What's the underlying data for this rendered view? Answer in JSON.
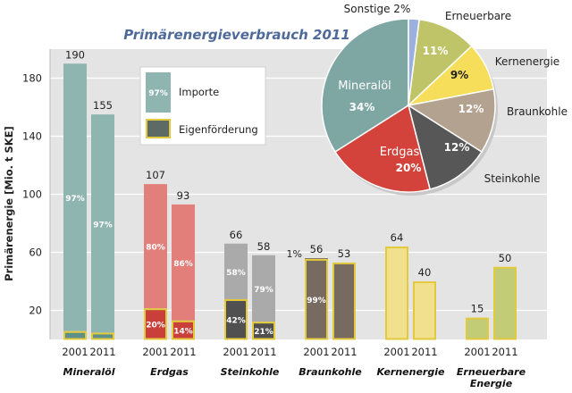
{
  "chart_data": [
    {
      "type": "bar",
      "title": "Primärenergieverbrauch 2011",
      "ylabel": "Primärenergie [Mio. t SKE]",
      "xlabel": "",
      "ylim": [
        0,
        200
      ],
      "yticks": [
        "20",
        "60",
        "100",
        "140",
        "180"
      ],
      "legend": {
        "placement": "top-left",
        "items": [
          {
            "label": "Importe",
            "swatch_pct": "97%"
          },
          {
            "label": "Eigenförderung",
            "swatch_pct": ""
          }
        ]
      },
      "groups": [
        {
          "name": "Mineralöl",
          "color": "#8fb5b1",
          "dark": "#5e8f8a",
          "bars": [
            {
              "year": "2001",
              "value": 190,
              "label": "190",
              "import_pct": 97,
              "import_label": "97%",
              "own_label": ""
            },
            {
              "year": "2011",
              "value": 155,
              "label": "155",
              "import_pct": 97,
              "import_label": "97%",
              "own_label": ""
            }
          ]
        },
        {
          "name": "Erdgas",
          "color": "#e27f7b",
          "dark": "#c9403b",
          "bars": [
            {
              "year": "2001",
              "value": 107,
              "label": "107",
              "import_pct": 80,
              "import_label": "80%",
              "own_label": "20%"
            },
            {
              "year": "2011",
              "value": 93,
              "label": "93",
              "import_pct": 86,
              "import_label": "86%",
              "own_label": "14%"
            }
          ]
        },
        {
          "name": "Steinkohle",
          "color": "#aaaaaa",
          "dark": "#505050",
          "bars": [
            {
              "year": "2001",
              "value": 66,
              "label": "66",
              "import_pct": 58,
              "import_label": "58%",
              "own_label": "42%"
            },
            {
              "year": "2011",
              "value": 58,
              "label": "58",
              "import_pct": 79,
              "import_label": "79%",
              "own_label": "21%"
            }
          ]
        },
        {
          "name": "Braunkohle",
          "color": "#776a60",
          "dark": "#776a60",
          "bars": [
            {
              "year": "2001",
              "value": 56,
              "label": "56",
              "import_pct": 1,
              "import_label": "",
              "own_label": "99%",
              "side_label": "1%"
            },
            {
              "year": "2011",
              "value": 53,
              "label": "53",
              "import_pct": 0,
              "import_label": "",
              "own_label": ""
            }
          ]
        },
        {
          "name": "Kernenergie",
          "color": "#f1e08e",
          "dark": "#f1e08e",
          "bars": [
            {
              "year": "2001",
              "value": 64,
              "label": "64",
              "import_pct": 0,
              "import_label": "",
              "own_label": ""
            },
            {
              "year": "2011",
              "value": 40,
              "label": "40",
              "import_pct": 0,
              "import_label": "",
              "own_label": ""
            }
          ]
        },
        {
          "name": "Erneuerbare Energie",
          "name_lines": [
            "Erneuerbare",
            "Energie"
          ],
          "color": "#c2cb75",
          "dark": "#c2cb75",
          "bars": [
            {
              "year": "2001",
              "value": 15,
              "label": "15",
              "import_pct": 0,
              "import_label": "",
              "own_label": ""
            },
            {
              "year": "2011",
              "value": 50,
              "label": "50",
              "import_pct": 0,
              "import_label": "",
              "own_label": ""
            }
          ]
        }
      ]
    },
    {
      "type": "pie",
      "slices": [
        {
          "name": "Mineralöl",
          "value": 34,
          "pct_label": "34%",
          "color": "#7ea6a3"
        },
        {
          "name": "Sonstige 2%",
          "value": 2,
          "pct_label": "",
          "color": "#9bb0dd"
        },
        {
          "name": "Erneuerbare",
          "value": 11,
          "pct_label": "11%",
          "color": "#bfc468"
        },
        {
          "name": "Kernenergie",
          "value": 9,
          "pct_label": "9%",
          "color": "#f7de5a"
        },
        {
          "name": "Braunkohle",
          "value": 12,
          "pct_label": "12%",
          "color": "#b4a290"
        },
        {
          "name": "Steinkohle",
          "value": 12,
          "pct_label": "12%",
          "color": "#575757"
        },
        {
          "name": "Erdgas",
          "value": 20,
          "pct_label": "20%",
          "color": "#d3433c"
        }
      ]
    }
  ]
}
